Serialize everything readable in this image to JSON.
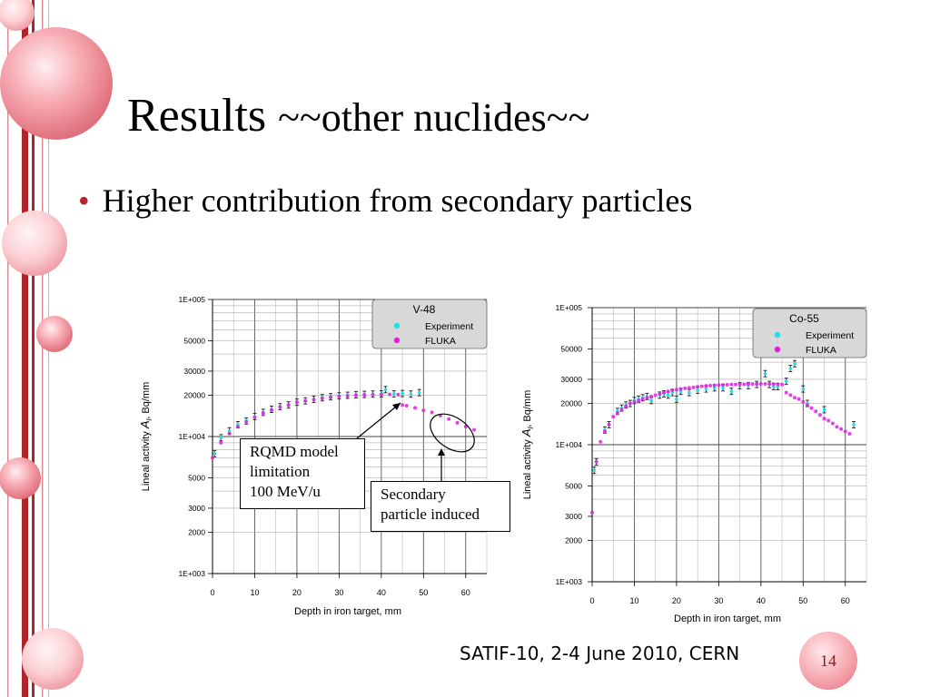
{
  "slide": {
    "title_main": "Results",
    "title_sub": "~~other nuclides~~",
    "bullet": "Higher contribution from secondary particles",
    "footer": "SATIF-10, 2-4 June 2010, CERN",
    "page_number": "14",
    "note_rqmd": [
      "RQMD model",
      "limitation",
      "100 MeV/u"
    ],
    "note_secondary": [
      "Secondary",
      "particle induced"
    ]
  },
  "colors": {
    "experiment": "#22e0e8",
    "fluka": "#e020e0",
    "accent_red": "#b0242a",
    "legend_bg": "#d8d8d8"
  },
  "chart_data": [
    {
      "type": "scatter",
      "title": "V-48",
      "xlabel": "Depth in iron  target, mm",
      "ylabel": "Lineal activity Al, Bq/mm",
      "ylabel_parts": [
        "Lineal activity ",
        "A",
        "l",
        ", Bq/mm"
      ],
      "xlim": [
        0,
        65
      ],
      "ylim": [
        1000,
        100000
      ],
      "yscale": "log",
      "grid": true,
      "legend_position": "top-right",
      "x_ticks": [
        "0",
        "10",
        "20",
        "30",
        "40",
        "50",
        "60"
      ],
      "y_ticks": [
        {
          "v": 100000,
          "label": "1E+005"
        },
        {
          "v": 50000,
          "label": "50000"
        },
        {
          "v": 30000,
          "label": "30000"
        },
        {
          "v": 20000,
          "label": "20000"
        },
        {
          "v": 10000,
          "label": "1E+004"
        },
        {
          "v": 5000,
          "label": "5000"
        },
        {
          "v": 3000,
          "label": "3000"
        },
        {
          "v": 2000,
          "label": "2000"
        },
        {
          "v": 1000,
          "label": "1E+003"
        }
      ],
      "legend": [
        "Experiment",
        "FLUKA"
      ],
      "series": [
        {
          "name": "Experiment",
          "x": [
            0.5,
            2,
            4,
            6,
            8,
            10,
            12,
            14,
            16,
            18,
            20,
            22,
            24,
            26,
            28,
            30,
            32,
            34,
            36,
            38,
            40,
            41,
            43,
            45,
            47,
            49
          ],
          "y": [
            7500,
            9800,
            11000,
            12200,
            13000,
            14000,
            15000,
            15800,
            16500,
            17000,
            17800,
            18200,
            18700,
            19200,
            19500,
            19800,
            20000,
            20200,
            20300,
            20400,
            20500,
            22000,
            20500,
            20600,
            20400,
            20900
          ]
        },
        {
          "name": "FLUKA",
          "x": [
            0,
            2,
            4,
            6,
            8,
            10,
            12,
            14,
            16,
            18,
            20,
            22,
            24,
            26,
            28,
            30,
            32,
            34,
            36,
            38,
            40,
            42,
            44,
            45,
            46,
            48,
            50,
            52,
            54,
            56,
            58,
            60,
            62
          ],
          "y": [
            7000,
            9000,
            10500,
            11800,
            12800,
            13800,
            14800,
            15600,
            16400,
            17000,
            17800,
            18200,
            18600,
            19000,
            19300,
            19600,
            19800,
            20000,
            20100,
            20200,
            20300,
            20300,
            20200,
            17000,
            16800,
            16200,
            15500,
            15000,
            14200,
            13400,
            12600,
            11800,
            11200
          ]
        }
      ]
    },
    {
      "type": "scatter",
      "title": "Co-55",
      "xlabel": "Depth in iron  target, mm",
      "ylabel": "Lineal activity Al, Bq/mm",
      "ylabel_parts": [
        "Lineal activity ",
        "A",
        "l",
        ", Bq/mm"
      ],
      "xlim": [
        0,
        65
      ],
      "ylim": [
        1000,
        100000
      ],
      "yscale": "log",
      "grid": true,
      "legend_position": "top-right",
      "x_ticks": [
        "0",
        "10",
        "20",
        "30",
        "40",
        "50",
        "60"
      ],
      "y_ticks": [
        {
          "v": 100000,
          "label": "1E+005"
        },
        {
          "v": 50000,
          "label": "50000"
        },
        {
          "v": 30000,
          "label": "30000"
        },
        {
          "v": 20000,
          "label": "20000"
        },
        {
          "v": 10000,
          "label": "1E+004"
        },
        {
          "v": 5000,
          "label": "5000"
        },
        {
          "v": 3000,
          "label": "3000"
        },
        {
          "v": 2000,
          "label": "2000"
        },
        {
          "v": 1000,
          "label": "1E+003"
        }
      ],
      "legend": [
        "Experiment",
        "FLUKA"
      ],
      "series": [
        {
          "name": "Experiment",
          "x": [
            0.5,
            1,
            3,
            4,
            6,
            7,
            8,
            9,
            10,
            11,
            12,
            13,
            14,
            16,
            17,
            18,
            19,
            20,
            21,
            23,
            25,
            27,
            29,
            31,
            33,
            35,
            37,
            39,
            41,
            42,
            43,
            44,
            46,
            47,
            48,
            50,
            51,
            55,
            62
          ],
          "y": [
            6500,
            7500,
            12800,
            14000,
            17500,
            18500,
            19500,
            20000,
            21000,
            21500,
            22000,
            22500,
            21000,
            23000,
            23500,
            23000,
            24000,
            21500,
            24500,
            24000,
            25000,
            25500,
            26000,
            26000,
            24500,
            27000,
            27000,
            27500,
            33000,
            27500,
            26500,
            26500,
            29000,
            36000,
            39000,
            25500,
            20000,
            18000,
            14000
          ]
        },
        {
          "name": "FLUKA",
          "x": [
            0,
            1,
            2,
            3,
            4,
            5,
            6,
            7,
            8,
            9,
            10,
            11,
            12,
            13,
            14,
            15,
            16,
            17,
            18,
            19,
            20,
            21,
            22,
            23,
            24,
            25,
            26,
            27,
            28,
            29,
            30,
            31,
            32,
            33,
            34,
            35,
            36,
            37,
            38,
            39,
            40,
            41,
            42,
            43,
            44,
            45,
            46,
            47,
            48,
            49,
            50,
            51,
            52,
            53,
            54,
            55,
            56,
            57,
            58,
            59,
            60,
            61
          ],
          "y": [
            3200,
            7500,
            10500,
            12500,
            14000,
            16000,
            17000,
            18000,
            19000,
            20000,
            20500,
            21000,
            21500,
            22000,
            22500,
            23000,
            23500,
            24000,
            24500,
            25000,
            25200,
            25500,
            25800,
            26000,
            26200,
            26500,
            26700,
            26900,
            27000,
            27100,
            27200,
            27300,
            27400,
            27500,
            27500,
            27600,
            27600,
            27700,
            27700,
            27800,
            27800,
            27800,
            27800,
            27700,
            27600,
            27500,
            24000,
            23000,
            22000,
            21500,
            20500,
            19500,
            18500,
            17500,
            16500,
            15500,
            15000,
            14300,
            13500,
            13000,
            12500,
            12000
          ]
        }
      ]
    }
  ]
}
